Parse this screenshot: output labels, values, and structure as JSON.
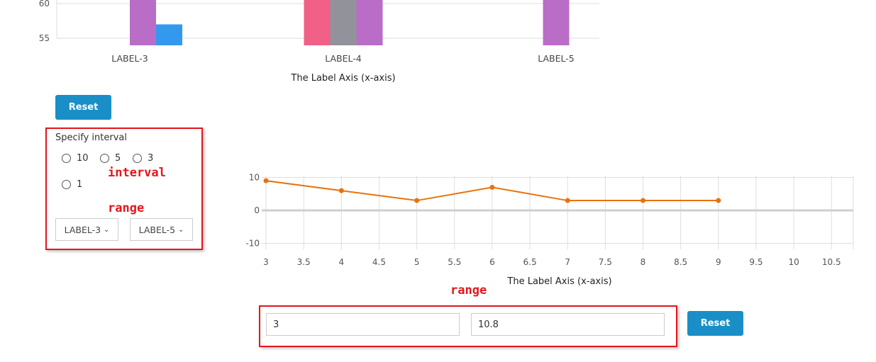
{
  "bar_chart": {
    "y_ticks": [
      "60",
      "55"
    ],
    "x_ticks": [
      "LABEL-3",
      "LABEL-4",
      "LABEL-5"
    ],
    "xlabel": "The Label Axis (x-axis)",
    "colors": {
      "purple": "#b96dc7",
      "blue": "#3399ee",
      "pink": "#f06087",
      "grey": "#92939a"
    }
  },
  "chart_data": [
    {
      "type": "bar",
      "xlabel": "The Label Axis (x-axis)",
      "ylabel": "",
      "ylim": [
        54,
        61
      ],
      "categories": [
        "LABEL-3",
        "LABEL-4",
        "LABEL-5"
      ],
      "series": [
        {
          "color": "#f06087",
          "values": [
            null,
            61,
            null
          ]
        },
        {
          "color": "#92939a",
          "values": [
            null,
            61,
            null
          ]
        },
        {
          "color": "#b96dc7",
          "values": [
            61,
            61,
            61
          ]
        },
        {
          "color": "#3399ee",
          "values": [
            57,
            null,
            null
          ]
        }
      ]
    },
    {
      "type": "line",
      "xlabel": "The Label Axis (x-axis)",
      "ylabel": "",
      "xlim": [
        3,
        10.8
      ],
      "ylim": [
        -10,
        10
      ],
      "x_ticks": [
        "3",
        "3.5",
        "4",
        "4.5",
        "5",
        "5.5",
        "6",
        "6.5",
        "7",
        "7.5",
        "8",
        "8.5",
        "9",
        "9.5",
        "10",
        "10.5"
      ],
      "y_ticks": [
        "10",
        "0",
        "-10"
      ],
      "grid": true,
      "series": [
        {
          "color": "#e8720c",
          "x": [
            3,
            4,
            5,
            6,
            7,
            8,
            9
          ],
          "y": [
            9,
            6,
            3,
            7,
            3,
            3,
            3
          ]
        }
      ]
    }
  ],
  "reset_top": "Reset",
  "interval": {
    "title": "Specify interval",
    "options": [
      "10",
      "5",
      "3",
      "1"
    ]
  },
  "range_selects": {
    "from": "LABEL-3",
    "to": "LABEL-5"
  },
  "range_inputs": {
    "from": "3",
    "to": "10.8"
  },
  "reset_bottom": "Reset",
  "annotations": {
    "interval": "interval",
    "range_left": "range",
    "range_bottom": "range"
  }
}
